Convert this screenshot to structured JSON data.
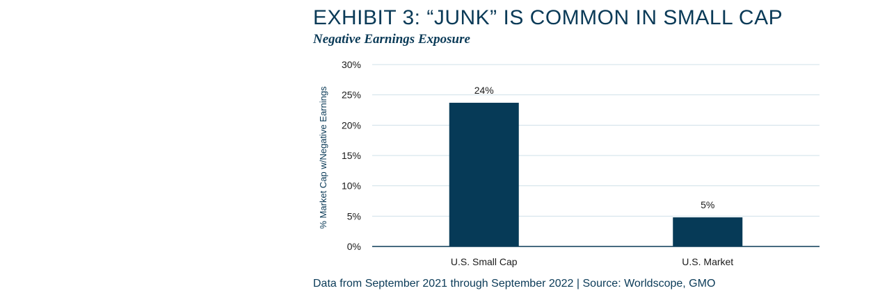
{
  "title": "EXHIBIT 3: “JUNK” IS COMMON IN SMALL CAP",
  "subtitle": "Negative Earnings Exposure",
  "footnote": "Data from September 2021 through September 2022 | Source: Worldscope, GMO",
  "colors": {
    "bar": "#063a57",
    "grid": "#cfe0e8",
    "axis": "#0a3a57",
    "text": "#0a3a57"
  },
  "chart_data": {
    "type": "bar",
    "categories": [
      "U.S. Small Cap",
      "U.S. Market"
    ],
    "values": [
      23.7,
      4.8
    ],
    "data_labels": [
      "24%",
      "5%"
    ],
    "ylabel": "% Market Cap w/Negative Earnings",
    "xlabel": "",
    "ylim": [
      0,
      30
    ],
    "yticks": [
      "0%",
      "5%",
      "10%",
      "15%",
      "20%",
      "25%",
      "30%"
    ],
    "ytick_values": [
      0,
      5,
      10,
      15,
      20,
      25,
      30
    ],
    "grid": true,
    "legend": "none"
  }
}
